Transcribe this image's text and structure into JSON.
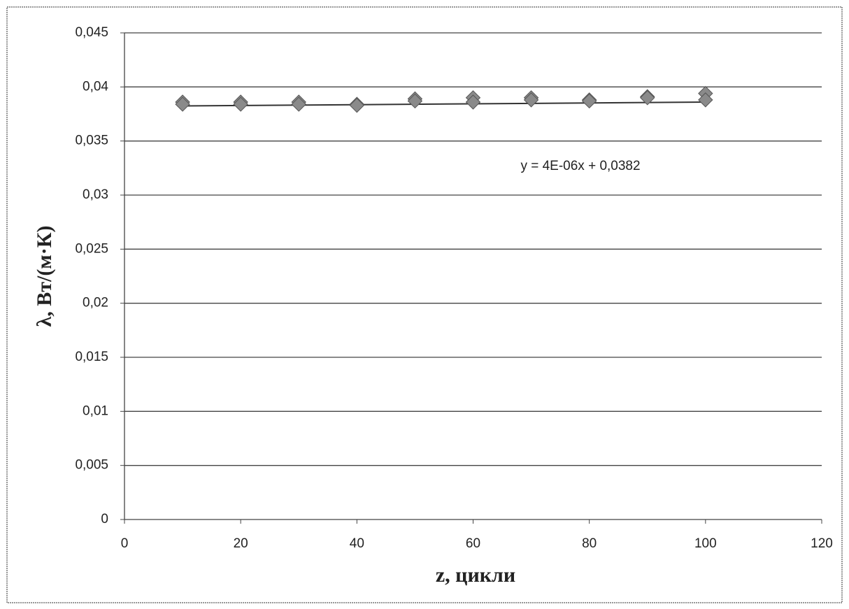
{
  "chart_data": {
    "type": "scatter",
    "x_label": "z, цикли",
    "y_label": "λ, Вт/(м·К)",
    "series": [
      {
        "name": "λ",
        "color": "#8a8a8a",
        "x": [
          10,
          10,
          20,
          20,
          30,
          30,
          40,
          40,
          50,
          50,
          60,
          60,
          70,
          70,
          80,
          80,
          90,
          90,
          100,
          100
        ],
        "values": [
          0.0386,
          0.0384,
          0.0386,
          0.0384,
          0.0386,
          0.0384,
          0.0384,
          0.0383,
          0.0389,
          0.0387,
          0.039,
          0.0386,
          0.039,
          0.0388,
          0.0388,
          0.0387,
          0.0391,
          0.039,
          0.0394,
          0.0388
        ]
      }
    ],
    "trendline": {
      "label": "y = 4E-06x + 0,0382",
      "slope": 4e-06,
      "intercept": 0.0382,
      "x_range": [
        10,
        100
      ],
      "color": "#333333"
    },
    "xlim": [
      0,
      120
    ],
    "xticks": [
      0,
      20,
      40,
      60,
      80,
      100,
      120
    ],
    "ylim": [
      0,
      0.045
    ],
    "yticks": [
      0,
      {
        "value": 0.005,
        "label": "0,005"
      },
      {
        "value": 0.01,
        "label": "0,01"
      },
      {
        "value": 0.015,
        "label": "0,015"
      },
      {
        "value": 0.02,
        "label": "0,02"
      },
      {
        "value": 0.025,
        "label": "0,025"
      },
      {
        "value": 0.03,
        "label": "0,03"
      },
      {
        "value": 0.035,
        "label": "0,035"
      },
      {
        "value": 0.04,
        "label": "0,04"
      },
      {
        "value": 0.045,
        "label": "0,045"
      }
    ],
    "grid": true
  }
}
